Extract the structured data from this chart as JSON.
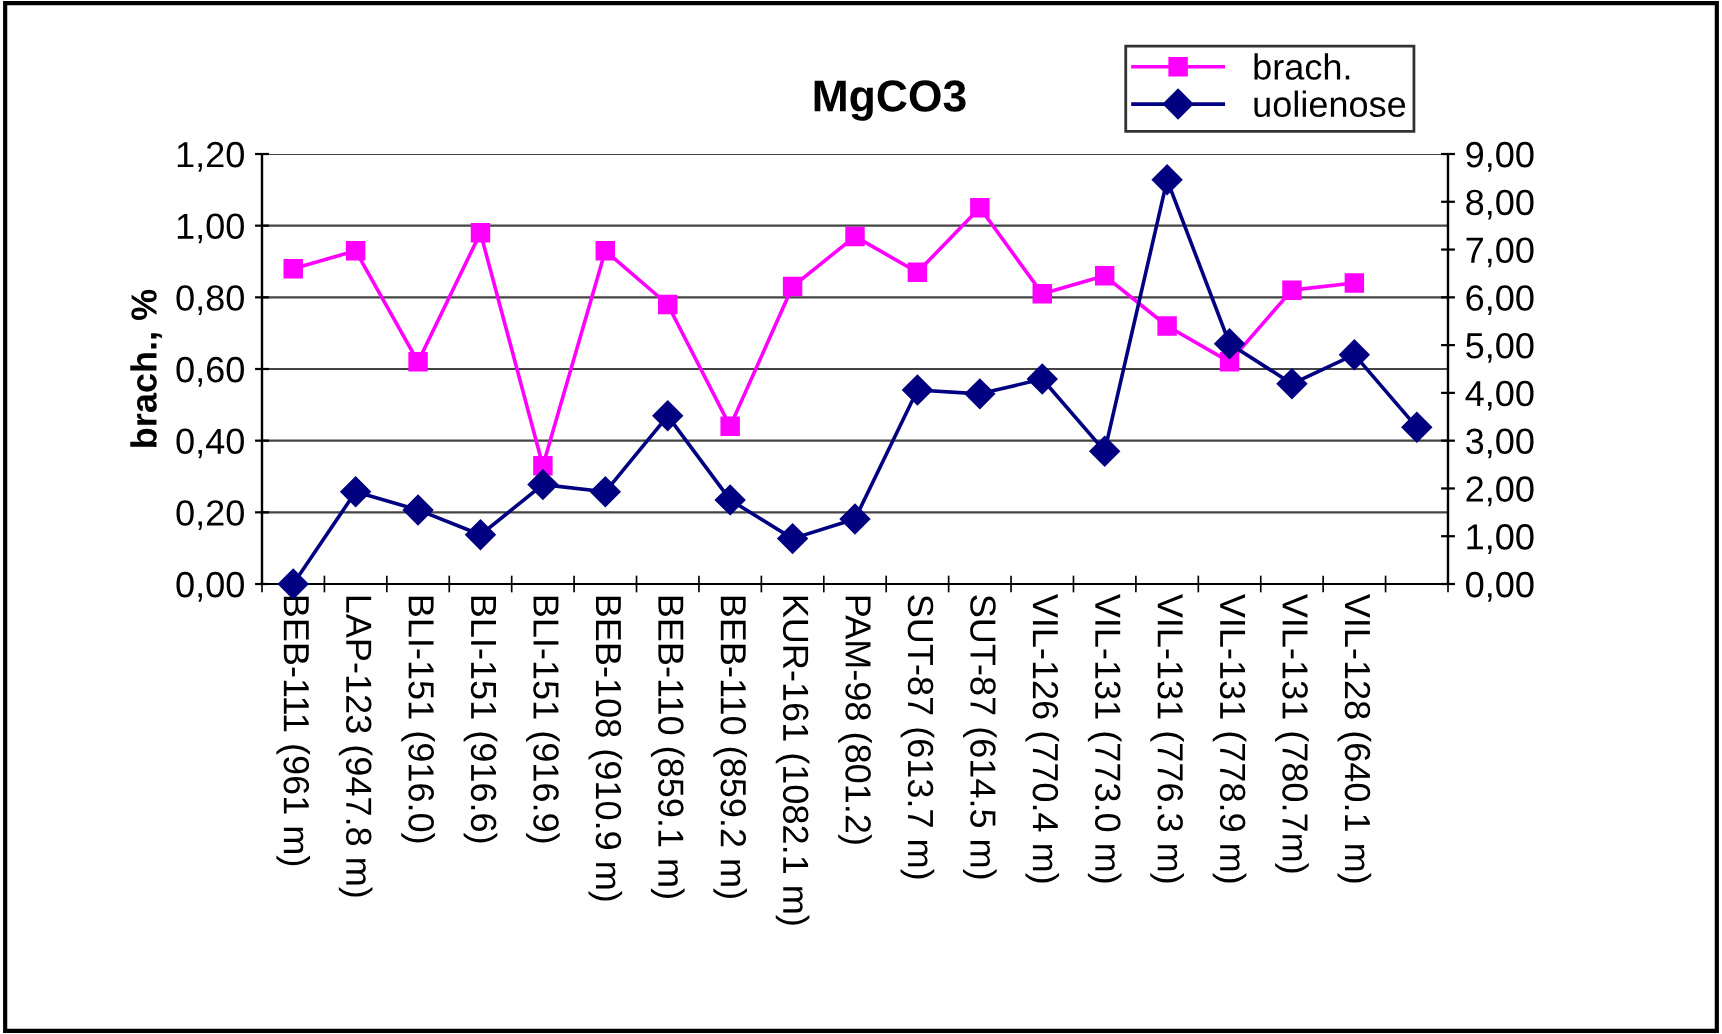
{
  "chart_data": {
    "type": "line",
    "title": "MgCO3",
    "ylabel": "brach., %",
    "categories": [
      "BEB-111 (961 m)",
      "LAP-123 (947.8 m)",
      "BLI-151 (916.0)",
      "BLI-151 (916.6)",
      "BLI-151 (916.9)",
      "BEB-108 (910.9 m)",
      "BEB-110 (859.1 m)",
      "BEB-110 (859.2 m)",
      "KUR-161 (1082.1 m)",
      "PAM-98 (801.2)",
      "SUT-87 (613.7 m)",
      "SUT-87 (614.5 m)",
      "VIL-126 (770.4 m)",
      "VIL-131 (773.0 m)",
      "VIL-131 (776.3 m)",
      "VIL-131 (778.9 m)",
      "VIL-131 (780.7m)",
      "VIL-128 (640.1 m)",
      null
    ],
    "series": [
      {
        "name": "brach.",
        "color": "#ff00ff",
        "marker": "square",
        "values": [
          0.88,
          0.93,
          0.62,
          0.98,
          0.33,
          0.93,
          0.78,
          0.44,
          0.83,
          0.97,
          0.87,
          1.05,
          0.81,
          0.86,
          0.72,
          0.62,
          0.82,
          0.84,
          null
        ]
      },
      {
        "name": "uolienose",
        "color": "#000080",
        "marker": "diamond",
        "axis": "y2",
        "values": [
          0.0,
          1.93,
          1.55,
          1.03,
          2.08,
          1.93,
          3.52,
          1.76,
          0.95,
          1.36,
          4.06,
          3.98,
          4.29,
          2.78,
          8.46,
          5.03,
          4.19,
          4.8,
          3.28
        ]
      }
    ],
    "ylim": [
      0,
      1.2
    ],
    "yticks": [
      {
        "value": 0,
        "label": "0,00"
      },
      {
        "value": 0.2,
        "label": "0,20"
      },
      {
        "value": 0.4,
        "label": "0,40"
      },
      {
        "value": 0.6,
        "label": "0,60"
      },
      {
        "value": 0.8,
        "label": "0,80"
      },
      {
        "value": 1.0,
        "label": "1,00"
      },
      {
        "value": 1.2,
        "label": "1,20"
      }
    ],
    "y2lim": [
      0,
      9
    ],
    "y2ticks": [
      {
        "value": 0,
        "label": "0,00"
      },
      {
        "value": 1,
        "label": "1,00"
      },
      {
        "value": 2,
        "label": "2,00"
      },
      {
        "value": 3,
        "label": "3,00"
      },
      {
        "value": 4,
        "label": "4,00"
      },
      {
        "value": 5,
        "label": "5,00"
      },
      {
        "value": 6,
        "label": "6,00"
      },
      {
        "value": 7,
        "label": "7,00"
      },
      {
        "value": 8,
        "label": "8,00"
      },
      {
        "value": 9,
        "label": "9,00"
      }
    ],
    "grid": "y",
    "legend": "top right"
  }
}
